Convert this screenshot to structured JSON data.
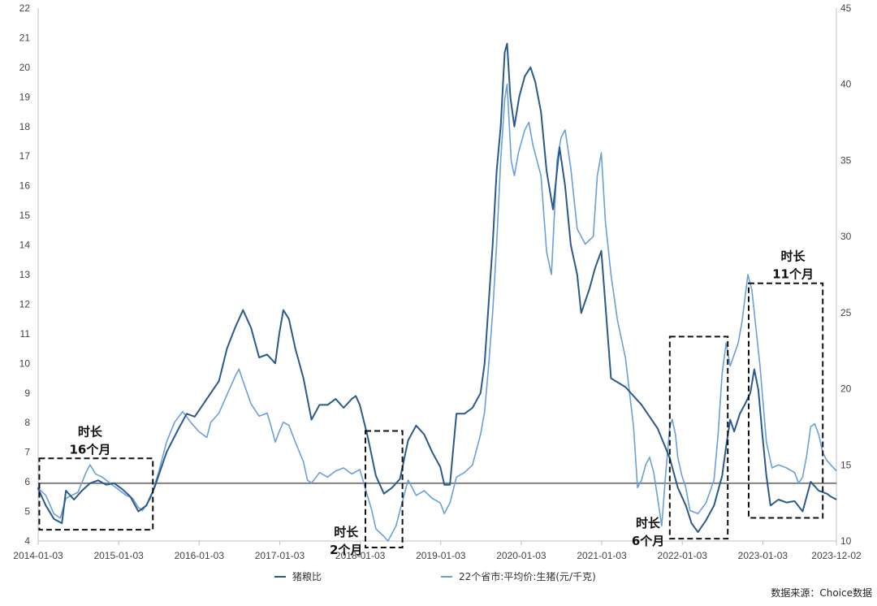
{
  "chart_data": {
    "type": "line",
    "left_axis": {
      "min": 4,
      "max": 22,
      "ticks": [
        4,
        5,
        6,
        7,
        8,
        9,
        10,
        11,
        12,
        13,
        14,
        15,
        16,
        17,
        18,
        19,
        20,
        21,
        22
      ]
    },
    "right_axis": {
      "min": 10,
      "max": 45,
      "ticks": [
        10,
        15,
        20,
        25,
        30,
        35,
        40,
        45
      ]
    },
    "x_axis": {
      "start": "2014-01-03",
      "end": "2023-12-02",
      "tick_labels": [
        "2014-01-03",
        "2015-01-03",
        "2016-01-03",
        "2017-01-03",
        "2018-01-03",
        "2019-01-03",
        "2020-01-03",
        "2021-01-03",
        "2022-01-03",
        "2023-01-03",
        "2023-12-02"
      ]
    },
    "reference_line": {
      "axis": "left",
      "value": 5.95,
      "color": "#808080"
    },
    "series": [
      {
        "name": "猪粮比",
        "axis": "left",
        "color": "#2a5a8c",
        "points": [
          [
            2014.0,
            5.8
          ],
          [
            2014.1,
            5.2
          ],
          [
            2014.2,
            4.75
          ],
          [
            2014.3,
            4.6
          ],
          [
            2014.35,
            5.7
          ],
          [
            2014.45,
            5.4
          ],
          [
            2014.55,
            5.7
          ],
          [
            2014.65,
            5.95
          ],
          [
            2014.75,
            6.05
          ],
          [
            2014.85,
            5.9
          ],
          [
            2014.95,
            5.95
          ],
          [
            2015.05,
            5.75
          ],
          [
            2015.15,
            5.5
          ],
          [
            2015.25,
            5.0
          ],
          [
            2015.35,
            5.2
          ],
          [
            2015.45,
            5.8
          ],
          [
            2015.6,
            7.0
          ],
          [
            2015.75,
            7.8
          ],
          [
            2015.85,
            8.3
          ],
          [
            2015.95,
            8.2
          ],
          [
            2016.05,
            8.6
          ],
          [
            2016.15,
            9.0
          ],
          [
            2016.25,
            9.4
          ],
          [
            2016.35,
            10.5
          ],
          [
            2016.45,
            11.2
          ],
          [
            2016.55,
            11.8
          ],
          [
            2016.65,
            11.2
          ],
          [
            2016.75,
            10.2
          ],
          [
            2016.85,
            10.3
          ],
          [
            2016.95,
            10.0
          ],
          [
            2017.0,
            11.0
          ],
          [
            2017.05,
            11.8
          ],
          [
            2017.12,
            11.5
          ],
          [
            2017.2,
            10.5
          ],
          [
            2017.3,
            9.5
          ],
          [
            2017.4,
            8.1
          ],
          [
            2017.5,
            8.6
          ],
          [
            2017.6,
            8.6
          ],
          [
            2017.7,
            8.8
          ],
          [
            2017.8,
            8.5
          ],
          [
            2017.9,
            8.8
          ],
          [
            2017.95,
            8.9
          ],
          [
            2018.0,
            8.6
          ],
          [
            2018.1,
            7.5
          ],
          [
            2018.2,
            6.2
          ],
          [
            2018.3,
            5.6
          ],
          [
            2018.4,
            5.8
          ],
          [
            2018.5,
            6.1
          ],
          [
            2018.6,
            7.4
          ],
          [
            2018.7,
            7.9
          ],
          [
            2018.8,
            7.6
          ],
          [
            2018.9,
            7.0
          ],
          [
            2019.0,
            6.5
          ],
          [
            2019.05,
            5.9
          ],
          [
            2019.12,
            5.9
          ],
          [
            2019.2,
            8.3
          ],
          [
            2019.3,
            8.3
          ],
          [
            2019.4,
            8.5
          ],
          [
            2019.5,
            9.0
          ],
          [
            2019.55,
            10.0
          ],
          [
            2019.6,
            12.0
          ],
          [
            2019.65,
            14.0
          ],
          [
            2019.7,
            16.5
          ],
          [
            2019.75,
            18.0
          ],
          [
            2019.8,
            20.5
          ],
          [
            2019.83,
            20.8
          ],
          [
            2019.87,
            19.0
          ],
          [
            2019.92,
            18.0
          ],
          [
            2019.98,
            19.0
          ],
          [
            2020.05,
            19.7
          ],
          [
            2020.12,
            20.0
          ],
          [
            2020.18,
            19.5
          ],
          [
            2020.25,
            18.5
          ],
          [
            2020.32,
            16.5
          ],
          [
            2020.4,
            15.2
          ],
          [
            2020.48,
            17.3
          ],
          [
            2020.55,
            16.0
          ],
          [
            2020.62,
            14.0
          ],
          [
            2020.7,
            13.0
          ],
          [
            2020.75,
            11.7
          ],
          [
            2020.85,
            12.5
          ],
          [
            2020.92,
            13.2
          ],
          [
            2021.0,
            13.8
          ],
          [
            2021.05,
            12.0
          ],
          [
            2021.12,
            9.5
          ],
          [
            2021.3,
            9.2
          ],
          [
            2021.5,
            8.6
          ],
          [
            2021.7,
            7.8
          ],
          [
            2021.85,
            6.8
          ],
          [
            2021.95,
            5.8
          ],
          [
            2022.05,
            5.2
          ],
          [
            2022.12,
            4.6
          ],
          [
            2022.2,
            4.3
          ],
          [
            2022.3,
            4.7
          ],
          [
            2022.4,
            5.2
          ],
          [
            2022.5,
            6.2
          ],
          [
            2022.55,
            7.2
          ],
          [
            2022.6,
            8.1
          ],
          [
            2022.65,
            7.7
          ],
          [
            2022.72,
            8.3
          ],
          [
            2022.78,
            8.6
          ],
          [
            2022.85,
            9.0
          ],
          [
            2022.9,
            9.8
          ],
          [
            2022.95,
            9.1
          ],
          [
            2023.0,
            7.6
          ],
          [
            2023.05,
            6.2
          ],
          [
            2023.1,
            5.2
          ],
          [
            2023.2,
            5.4
          ],
          [
            2023.3,
            5.3
          ],
          [
            2023.4,
            5.35
          ],
          [
            2023.5,
            5.0
          ],
          [
            2023.6,
            6.0
          ],
          [
            2023.7,
            5.7
          ],
          [
            2023.8,
            5.6
          ],
          [
            2023.85,
            5.5
          ],
          [
            2023.92,
            5.4
          ]
        ]
      },
      {
        "name": "22个省市:平均价:生猪(元/千克)",
        "axis": "right",
        "color": "#6a9fd8",
        "points": [
          [
            2014.0,
            13.5
          ],
          [
            2014.1,
            13.0
          ],
          [
            2014.2,
            11.8
          ],
          [
            2014.28,
            11.5
          ],
          [
            2014.35,
            12.8
          ],
          [
            2014.5,
            13.2
          ],
          [
            2014.6,
            14.5
          ],
          [
            2014.65,
            15.0
          ],
          [
            2014.72,
            14.4
          ],
          [
            2014.8,
            14.2
          ],
          [
            2014.9,
            13.8
          ],
          [
            2015.0,
            13.4
          ],
          [
            2015.1,
            13.0
          ],
          [
            2015.18,
            12.8
          ],
          [
            2015.25,
            12.2
          ],
          [
            2015.3,
            12.0
          ],
          [
            2015.4,
            12.8
          ],
          [
            2015.5,
            14.5
          ],
          [
            2015.6,
            16.5
          ],
          [
            2015.7,
            17.8
          ],
          [
            2015.8,
            18.5
          ],
          [
            2015.9,
            17.8
          ],
          [
            2016.0,
            17.2
          ],
          [
            2016.1,
            16.8
          ],
          [
            2016.15,
            17.8
          ],
          [
            2016.25,
            18.4
          ],
          [
            2016.35,
            19.6
          ],
          [
            2016.45,
            20.8
          ],
          [
            2016.5,
            21.3
          ],
          [
            2016.55,
            20.5
          ],
          [
            2016.65,
            19.0
          ],
          [
            2016.75,
            18.2
          ],
          [
            2016.85,
            18.4
          ],
          [
            2016.9,
            17.5
          ],
          [
            2016.95,
            16.5
          ],
          [
            2017.0,
            17.2
          ],
          [
            2017.05,
            17.8
          ],
          [
            2017.12,
            17.6
          ],
          [
            2017.2,
            16.5
          ],
          [
            2017.3,
            15.2
          ],
          [
            2017.35,
            14.0
          ],
          [
            2017.4,
            13.8
          ],
          [
            2017.5,
            14.5
          ],
          [
            2017.6,
            14.2
          ],
          [
            2017.7,
            14.6
          ],
          [
            2017.8,
            14.8
          ],
          [
            2017.9,
            14.4
          ],
          [
            2018.0,
            14.7
          ],
          [
            2018.05,
            13.8
          ],
          [
            2018.15,
            12.0
          ],
          [
            2018.2,
            10.8
          ],
          [
            2018.3,
            10.3
          ],
          [
            2018.35,
            10.0
          ],
          [
            2018.45,
            11.0
          ],
          [
            2018.5,
            12.0
          ],
          [
            2018.6,
            14.0
          ],
          [
            2018.7,
            13.0
          ],
          [
            2018.8,
            13.3
          ],
          [
            2018.9,
            12.8
          ],
          [
            2019.0,
            12.5
          ],
          [
            2019.05,
            11.8
          ],
          [
            2019.12,
            12.5
          ],
          [
            2019.2,
            14.2
          ],
          [
            2019.3,
            14.5
          ],
          [
            2019.4,
            15.0
          ],
          [
            2019.5,
            17.0
          ],
          [
            2019.55,
            18.5
          ],
          [
            2019.6,
            21.5
          ],
          [
            2019.65,
            25.0
          ],
          [
            2019.7,
            29.5
          ],
          [
            2019.75,
            35.0
          ],
          [
            2019.8,
            39.0
          ],
          [
            2019.83,
            40.0
          ],
          [
            2019.88,
            35.0
          ],
          [
            2019.92,
            34.0
          ],
          [
            2019.97,
            35.5
          ],
          [
            2020.05,
            37.0
          ],
          [
            2020.1,
            37.5
          ],
          [
            2020.15,
            36.0
          ],
          [
            2020.25,
            34.0
          ],
          [
            2020.32,
            29.0
          ],
          [
            2020.38,
            27.5
          ],
          [
            2020.45,
            35.0
          ],
          [
            2020.5,
            36.5
          ],
          [
            2020.55,
            37.0
          ],
          [
            2020.62,
            34.5
          ],
          [
            2020.7,
            30.5
          ],
          [
            2020.8,
            29.5
          ],
          [
            2020.9,
            30.0
          ],
          [
            2020.95,
            34.0
          ],
          [
            2021.0,
            35.5
          ],
          [
            2021.05,
            31.0
          ],
          [
            2021.12,
            27.5
          ],
          [
            2021.2,
            24.5
          ],
          [
            2021.3,
            22.0
          ],
          [
            2021.4,
            17.5
          ],
          [
            2021.45,
            13.5
          ],
          [
            2021.5,
            14.0
          ],
          [
            2021.55,
            15.0
          ],
          [
            2021.6,
            15.5
          ],
          [
            2021.65,
            14.5
          ],
          [
            2021.7,
            12.8
          ],
          [
            2021.75,
            11.0
          ],
          [
            2021.8,
            14.5
          ],
          [
            2021.85,
            17.5
          ],
          [
            2021.88,
            18.0
          ],
          [
            2021.92,
            17.0
          ],
          [
            2021.95,
            15.5
          ],
          [
            2022.0,
            14.3
          ],
          [
            2022.05,
            13.5
          ],
          [
            2022.1,
            12.0
          ],
          [
            2022.2,
            11.8
          ],
          [
            2022.3,
            12.5
          ],
          [
            2022.4,
            14.0
          ],
          [
            2022.45,
            17.0
          ],
          [
            2022.5,
            21.0
          ],
          [
            2022.55,
            23.0
          ],
          [
            2022.6,
            21.5
          ],
          [
            2022.7,
            23.0
          ],
          [
            2022.75,
            24.5
          ],
          [
            2022.82,
            27.5
          ],
          [
            2022.87,
            26.5
          ],
          [
            2022.92,
            24.0
          ],
          [
            2022.97,
            21.5
          ],
          [
            2023.05,
            16.5
          ],
          [
            2023.12,
            14.8
          ],
          [
            2023.2,
            15.0
          ],
          [
            2023.3,
            14.8
          ],
          [
            2023.4,
            14.5
          ],
          [
            2023.45,
            13.8
          ],
          [
            2023.5,
            14.2
          ],
          [
            2023.55,
            15.6
          ],
          [
            2023.6,
            17.5
          ],
          [
            2023.65,
            17.7
          ],
          [
            2023.7,
            17.0
          ],
          [
            2023.75,
            15.8
          ],
          [
            2023.8,
            15.3
          ],
          [
            2023.85,
            15.0
          ],
          [
            2023.92,
            14.6
          ]
        ]
      }
    ],
    "annotations": [
      {
        "lines": [
          "时长",
          "16个月"
        ],
        "box_start": 2014.02,
        "box_end": 2015.43,
        "label_date": 2014.65
      },
      {
        "lines": [
          "时长",
          "2个月"
        ],
        "box_start": 2018.07,
        "box_end": 2018.53,
        "label_date": 2017.83
      },
      {
        "lines": [
          "时长",
          "6个月"
        ],
        "box_start": 2021.85,
        "box_end": 2022.57,
        "label_date": 2021.58
      },
      {
        "lines": [
          "时长",
          "11个月"
        ],
        "box_start": 2022.83,
        "box_end": 2023.75,
        "label_date": 2023.38
      }
    ]
  },
  "legend": [
    {
      "name": "猪粮比",
      "color": "#2a5a8c"
    },
    {
      "name": "22个省市:平均价:生猪(元/千克)",
      "color": "#6a9fd8"
    }
  ],
  "source": "数据来源：Choice数据"
}
